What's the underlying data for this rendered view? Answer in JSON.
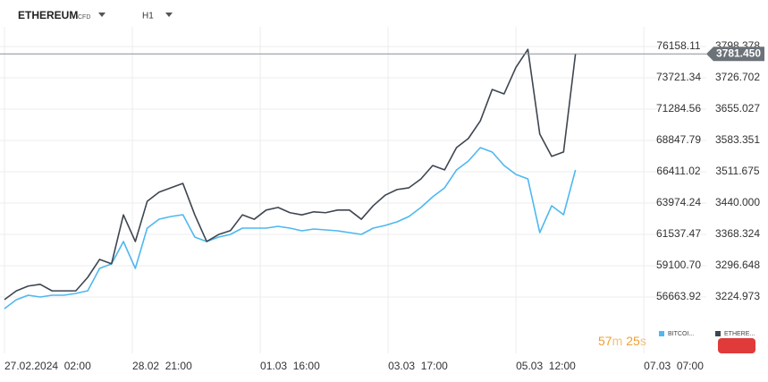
{
  "header": {
    "symbol": "ETHEREUM",
    "kind": "CFD",
    "interval": "H1"
  },
  "countdown": {
    "minutes": "57",
    "minutes_unit": "m",
    "seconds": "25",
    "seconds_unit": "s"
  },
  "chart_data": {
    "type": "line",
    "x": [
      0,
      4,
      8,
      12,
      16,
      20,
      24,
      28,
      32,
      36,
      40,
      44,
      48,
      52,
      56,
      60,
      64,
      68,
      72,
      76,
      80,
      84,
      88,
      92,
      96,
      100,
      104,
      108,
      112,
      116,
      120,
      124,
      128,
      132,
      136,
      140,
      144,
      148,
      152,
      156,
      160,
      164,
      168,
      172,
      176,
      180,
      184,
      188,
      192
    ],
    "xlim": [
      -1.5,
      236
    ],
    "xticks": [
      {
        "value": 0,
        "label": "27.02.2024  02:00"
      },
      {
        "value": 43,
        "label": "28.02  21:00"
      },
      {
        "value": 86,
        "label": "01.03  16:00"
      },
      {
        "value": 129,
        "label": "03.03  17:00"
      },
      {
        "value": 172,
        "label": "05.03  12:00"
      },
      {
        "value": 215,
        "label": "07.03  07:00"
      }
    ],
    "ylim": [
      52278,
      77689
    ],
    "yticks": [
      {
        "value": 56663.92,
        "label": "56663.92"
      },
      {
        "value": 59100.7,
        "label": "59100.70"
      },
      {
        "value": 61537.47,
        "label": "61537.47"
      },
      {
        "value": 63974.24,
        "label": "63974.24"
      },
      {
        "value": 66411.02,
        "label": "66411.02"
      },
      {
        "value": 68847.79,
        "label": "68847.79"
      },
      {
        "value": 71284.56,
        "label": "71284.56"
      },
      {
        "value": 73721.34,
        "label": "73721.34"
      },
      {
        "value": 76158.11,
        "label": "76158.11"
      }
    ],
    "y2lim": [
      3095.9,
      3843.5
    ],
    "y2ticks": [
      {
        "value": 3224.973,
        "label": "3224.973"
      },
      {
        "value": 3296.648,
        "label": "3296.648"
      },
      {
        "value": 3368.324,
        "label": "3368.324"
      },
      {
        "value": 3440.0,
        "label": "3440.000"
      },
      {
        "value": 3511.675,
        "label": "3511.675"
      },
      {
        "value": 3583.351,
        "label": "3583.351"
      },
      {
        "value": 3655.027,
        "label": "3655.027"
      },
      {
        "value": 3726.702,
        "label": "3726.702"
      },
      {
        "value": 3798.378,
        "label": "3798.378"
      }
    ],
    "grid": true,
    "series": [
      {
        "name": "BITCOI...",
        "color": "#4db8f0",
        "values": [
          55759,
          56455,
          56803,
          56664,
          56803,
          56803,
          56942,
          57151,
          58892,
          59240,
          60980,
          58892,
          62025,
          62721,
          62930,
          63069,
          61328,
          60980,
          61328,
          61537,
          62025,
          62025,
          62025,
          62164,
          62025,
          61816,
          61955,
          61885,
          61816,
          61677,
          61537,
          62025,
          62233,
          62512,
          62930,
          63626,
          64461,
          65158,
          66550,
          67246,
          68290,
          67942,
          66898,
          66202,
          65854,
          61677,
          63765,
          63069,
          66550
        ]
      },
      {
        "name": "ETHERE...",
        "color": "#3d4650",
        "axis": "y2",
        "values": [
          3219,
          3239,
          3250,
          3254,
          3239,
          3239,
          3239,
          3270,
          3311,
          3301,
          3413,
          3352,
          3444,
          3465,
          3475,
          3485,
          3413,
          3352,
          3368,
          3377,
          3413,
          3403,
          3424,
          3430,
          3418,
          3413,
          3420,
          3418,
          3424,
          3424,
          3403,
          3434,
          3458,
          3471,
          3475,
          3495,
          3526,
          3516,
          3567,
          3588,
          3628,
          3700,
          3690,
          3751,
          3792,
          3598,
          3547,
          3557,
          3781.45
        ]
      }
    ],
    "current_price": {
      "value": 3781.45,
      "label": "3781.450"
    }
  }
}
